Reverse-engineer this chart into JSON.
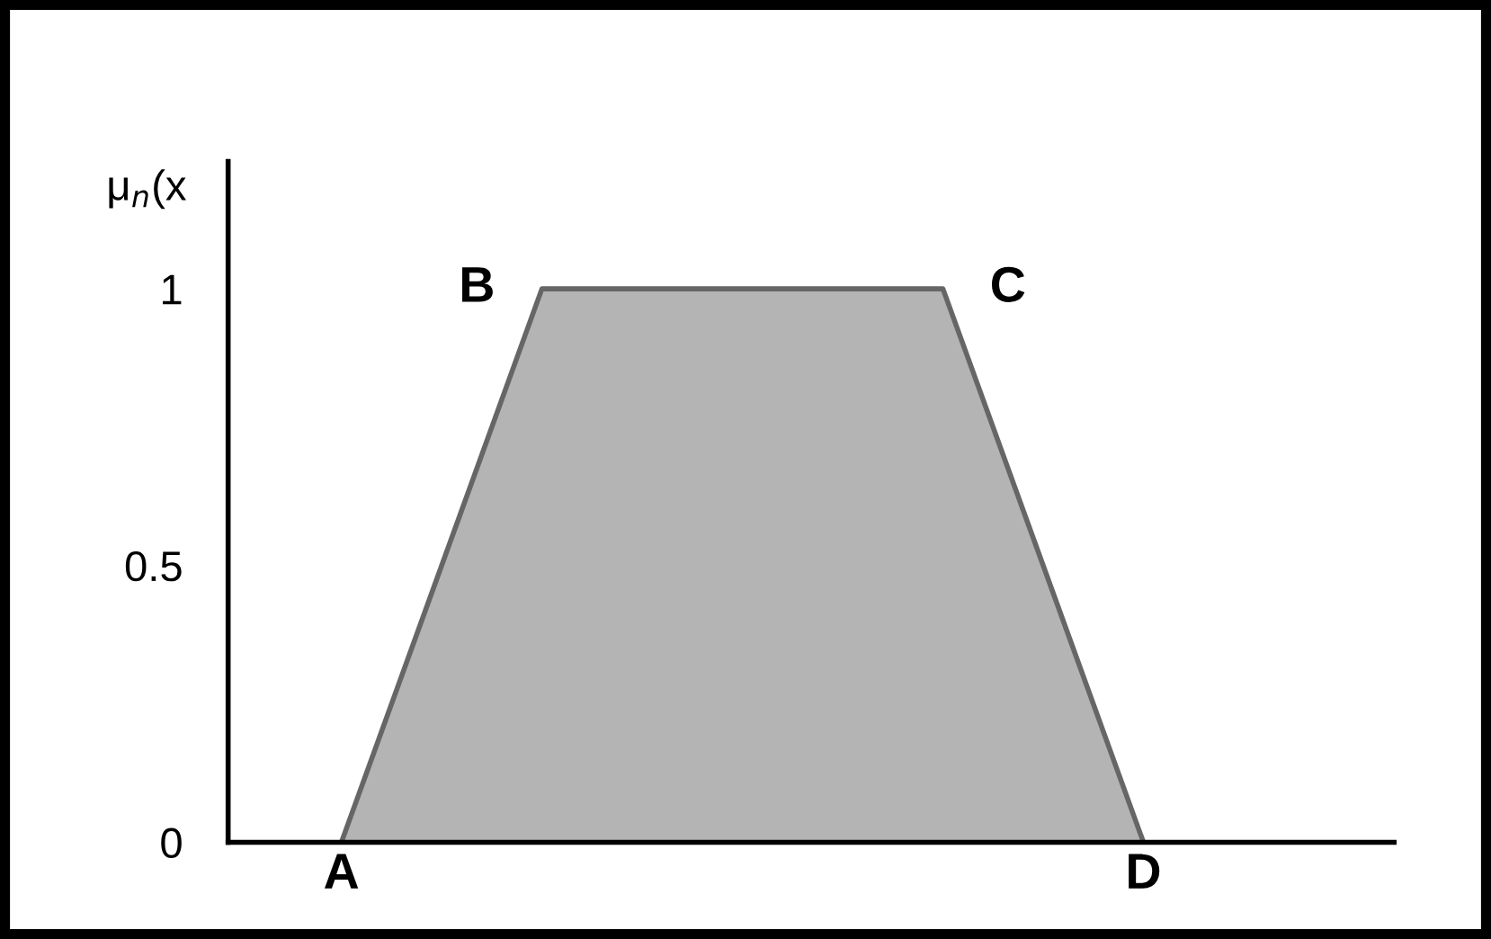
{
  "chart_data": {
    "type": "area",
    "ylabel": "μ$_{n}$(x",
    "categories": [
      null,
      "A",
      null,
      null,
      null,
      null,
      null,
      null,
      null,
      "D",
      null
    ],
    "values": [
      null,
      0,
      0.5,
      1,
      1,
      1,
      1,
      1,
      0.5,
      0,
      null
    ],
    "color": "#b4b4b4",
    "ylim": [
      0,
      1.23
    ],
    "yticks": [
      0,
      0.5,
      1
    ],
    "grid": false,
    "legend": false,
    "annotations": [
      "B",
      "C"
    ]
  }
}
